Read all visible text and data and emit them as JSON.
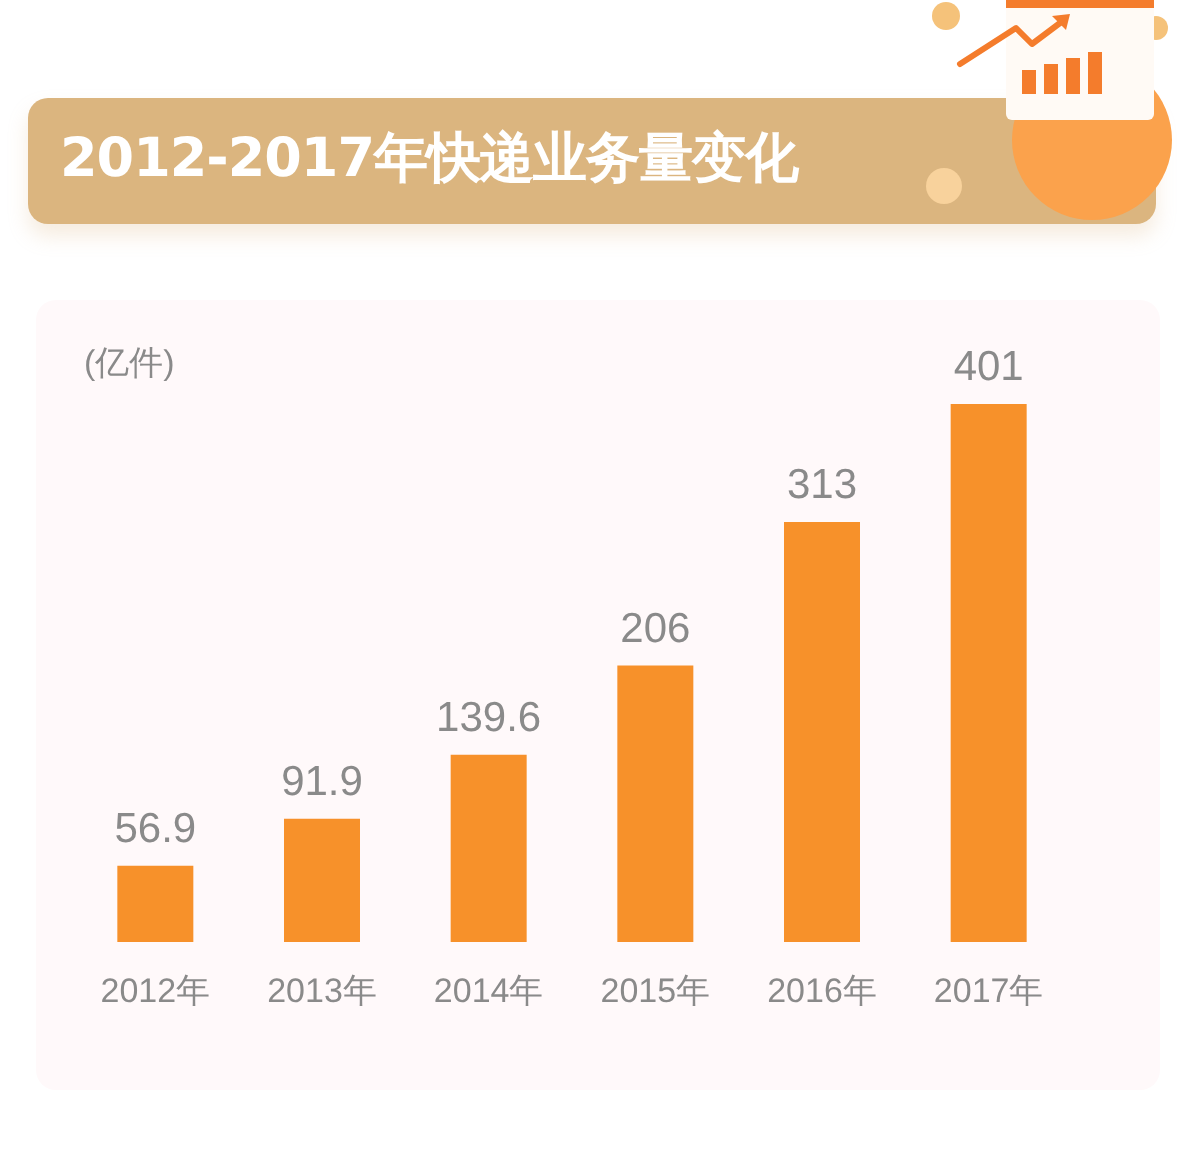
{
  "chart_data": {
    "type": "bar",
    "title": "2012-2017年快递业务量变化",
    "ylabel": "(亿件)",
    "categories": [
      "2012年",
      "2013年",
      "2014年",
      "2015年",
      "2016年",
      "2017年"
    ],
    "values": [
      56.9,
      91.9,
      139.6,
      206,
      313,
      401
    ],
    "color": "#f7912a",
    "data_labels": true
  }
}
